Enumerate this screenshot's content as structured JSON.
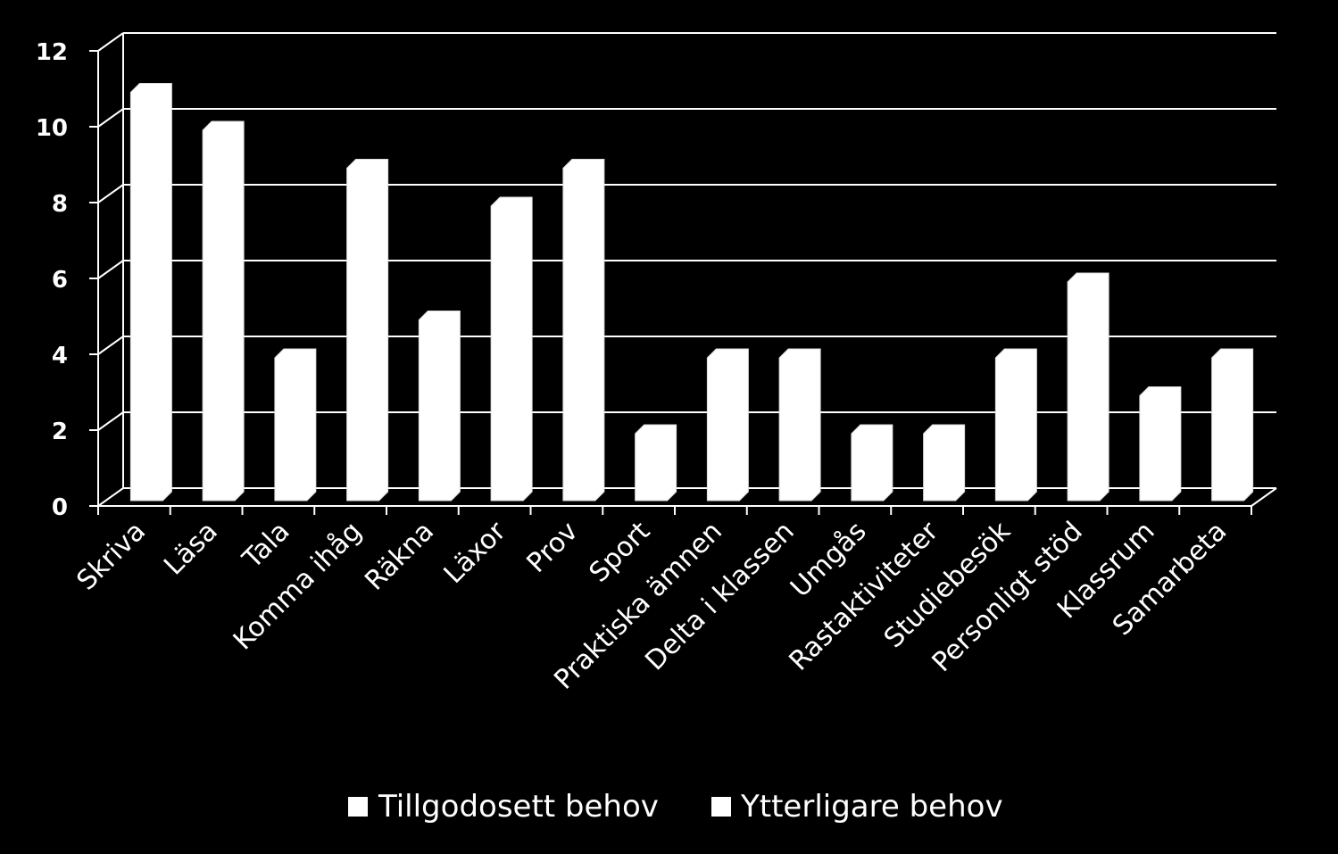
{
  "chart_data": {
    "type": "bar",
    "categories": [
      "Skriva",
      "Läsa",
      "Tala",
      "Komma ihåg",
      "Räkna",
      "Läxor",
      "Prov",
      "Sport",
      "Praktiska ämnen",
      "Delta i klassen",
      "Umgås",
      "Rastaktiviteter",
      "Studiebesök",
      "Personligt stöd",
      "Klassrum",
      "Samarbeta"
    ],
    "series": [
      {
        "name": "Tillgodosett behov",
        "values": [
          11,
          10,
          4,
          9,
          5,
          8,
          9,
          2,
          4,
          4,
          2,
          2,
          4,
          6,
          3,
          4
        ],
        "color": "#ffffff"
      },
      {
        "name": "Ytterligare behov",
        "values": [
          0,
          0,
          0,
          0,
          0,
          0,
          0,
          0,
          0,
          0,
          0,
          0,
          0,
          0,
          0,
          0
        ],
        "color": "#ffffff"
      }
    ],
    "ylim": [
      0,
      12
    ],
    "yticks": [
      "0",
      "2",
      "4",
      "6",
      "8",
      "10",
      "12"
    ],
    "grid": true,
    "legend_position": "bottom",
    "colors": {
      "background": "#000000",
      "bars": "#ffffff",
      "grid": "#ffffff"
    }
  }
}
